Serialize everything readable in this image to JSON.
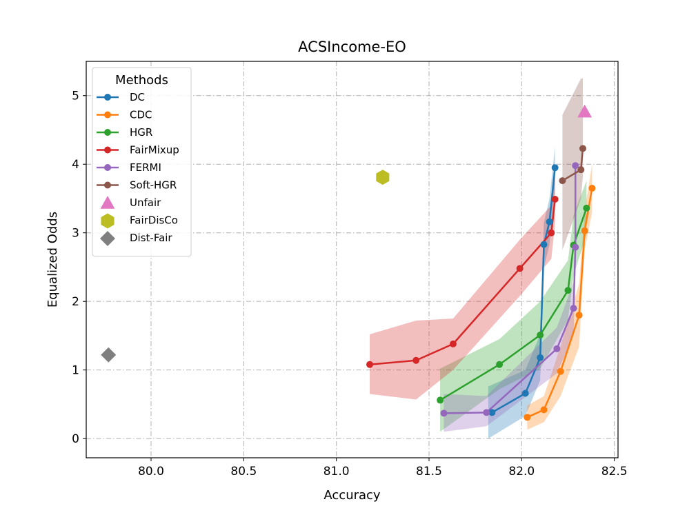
{
  "chart_data": {
    "type": "line",
    "title": "ACSIncome-EO",
    "xlabel": "Accuracy",
    "ylabel": "Equalized Odds",
    "xlim": [
      79.65,
      82.52
    ],
    "ylim": [
      -0.28,
      5.5
    ],
    "xticks": [
      80.0,
      80.5,
      81.0,
      81.5,
      82.0,
      82.5
    ],
    "yticks": [
      0,
      1,
      2,
      3,
      4,
      5
    ],
    "grid": true,
    "legend": {
      "title": "Methods",
      "placement": "upper-left"
    },
    "series": [
      {
        "name": "DC",
        "color": "#1f77b4",
        "kind": "line",
        "points": [
          [
            81.84,
            0.38
          ],
          [
            82.02,
            0.66
          ],
          [
            82.1,
            1.18
          ],
          [
            82.12,
            2.83
          ],
          [
            82.15,
            3.16
          ],
          [
            82.18,
            3.95
          ]
        ],
        "band": [
          [
            81.82,
            0.0,
            0.76
          ],
          [
            82.02,
            0.33,
            1.0
          ],
          [
            82.1,
            0.85,
            1.52
          ],
          [
            82.12,
            2.5,
            3.15
          ],
          [
            82.15,
            2.82,
            3.5
          ],
          [
            82.18,
            3.65,
            4.25
          ]
        ]
      },
      {
        "name": "CDC",
        "color": "#ff7f0e",
        "kind": "line",
        "points": [
          [
            82.03,
            0.31
          ],
          [
            82.12,
            0.42
          ],
          [
            82.21,
            0.98
          ],
          [
            82.31,
            1.8
          ],
          [
            82.34,
            3.03
          ],
          [
            82.38,
            3.65
          ]
        ],
        "band": [
          [
            82.03,
            0.13,
            0.48
          ],
          [
            82.12,
            0.24,
            0.62
          ],
          [
            82.21,
            0.62,
            1.35
          ],
          [
            82.31,
            1.34,
            2.26
          ],
          [
            82.34,
            2.75,
            3.32
          ],
          [
            82.38,
            3.3,
            4.0
          ]
        ]
      },
      {
        "name": "HGR",
        "color": "#2ca02c",
        "kind": "line",
        "points": [
          [
            81.56,
            0.56
          ],
          [
            81.88,
            1.08
          ],
          [
            82.1,
            1.51
          ],
          [
            82.25,
            2.16
          ],
          [
            82.28,
            2.82
          ],
          [
            82.35,
            3.36
          ]
        ],
        "band": [
          [
            81.56,
            0.1,
            1.02
          ],
          [
            81.88,
            0.72,
            1.45
          ],
          [
            82.1,
            1.02,
            2.0
          ],
          [
            82.25,
            1.73,
            2.6
          ],
          [
            82.28,
            2.38,
            3.26
          ],
          [
            82.35,
            2.98,
            3.76
          ]
        ]
      },
      {
        "name": "FairMixup",
        "color": "#d62728",
        "kind": "line",
        "points": [
          [
            81.18,
            1.08
          ],
          [
            81.43,
            1.14
          ],
          [
            81.63,
            1.38
          ],
          [
            81.99,
            2.48
          ],
          [
            82.16,
            3.0
          ],
          [
            82.18,
            3.49
          ]
        ],
        "band": [
          [
            81.18,
            0.65,
            1.52
          ],
          [
            81.43,
            0.57,
            1.72
          ],
          [
            81.63,
            1.0,
            1.75
          ],
          [
            81.99,
            2.08,
            2.9
          ],
          [
            82.16,
            2.62,
            3.4
          ],
          [
            82.18,
            3.12,
            3.88
          ]
        ]
      },
      {
        "name": "FERMI",
        "color": "#9467bd",
        "kind": "line",
        "points": [
          [
            81.58,
            0.37
          ],
          [
            81.81,
            0.38
          ],
          [
            82.19,
            1.31
          ],
          [
            82.28,
            1.9
          ],
          [
            82.29,
            2.79
          ],
          [
            82.29,
            3.98
          ]
        ],
        "band": [
          [
            81.58,
            0.1,
            0.65
          ],
          [
            81.81,
            0.18,
            0.62
          ],
          [
            82.19,
            0.95,
            1.62
          ],
          [
            82.28,
            1.5,
            2.28
          ],
          [
            82.29,
            2.45,
            3.15
          ],
          [
            82.29,
            3.7,
            4.28
          ]
        ]
      },
      {
        "name": "Soft-HGR",
        "color": "#8c564b",
        "kind": "line",
        "points": [
          [
            82.22,
            3.76
          ],
          [
            82.32,
            3.92
          ],
          [
            82.33,
            4.23
          ]
        ],
        "band": [
          [
            82.22,
            2.75,
            4.72
          ],
          [
            82.32,
            3.5,
            5.25
          ],
          [
            82.33,
            3.82,
            5.25
          ]
        ]
      },
      {
        "name": "Unfair",
        "color": "#e377c2",
        "kind": "marker",
        "marker": "triangle",
        "points": [
          [
            82.34,
            4.76
          ]
        ]
      },
      {
        "name": "FairDisCo",
        "color": "#bcbd22",
        "kind": "marker",
        "marker": "hexagon",
        "points": [
          [
            81.25,
            3.81
          ]
        ]
      },
      {
        "name": "Dist-Fair",
        "color": "#7f7f7f",
        "kind": "marker",
        "marker": "diamond",
        "points": [
          [
            79.77,
            1.22
          ]
        ]
      }
    ]
  }
}
